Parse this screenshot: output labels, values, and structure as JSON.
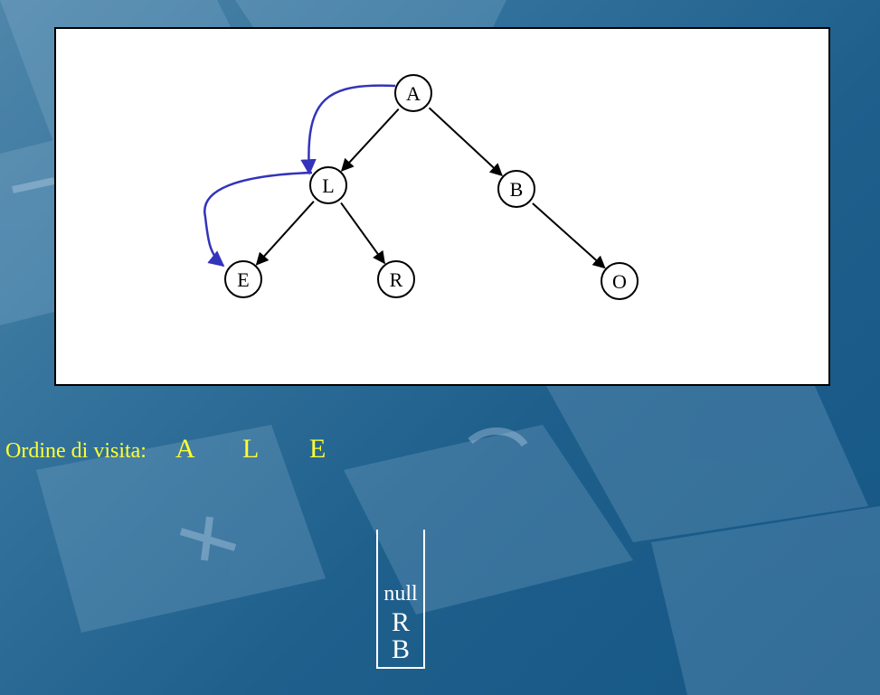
{
  "tree": {
    "nodes": [
      {
        "id": "A",
        "label": "A"
      },
      {
        "id": "L",
        "label": "L"
      },
      {
        "id": "B",
        "label": "B"
      },
      {
        "id": "E",
        "label": "E"
      },
      {
        "id": "R",
        "label": "R"
      },
      {
        "id": "O",
        "label": "O"
      }
    ],
    "edges": [
      {
        "from": "A",
        "to": "L"
      },
      {
        "from": "A",
        "to": "B"
      },
      {
        "from": "L",
        "to": "E"
      },
      {
        "from": "L",
        "to": "R"
      },
      {
        "from": "B",
        "to": "O"
      }
    ],
    "traversal_path": [
      {
        "from": "A",
        "to": "L"
      },
      {
        "from": "L",
        "to": "E"
      }
    ],
    "colors": {
      "edge": "#000000",
      "traversal": "#3333bb",
      "node_fill": "#ffffff"
    }
  },
  "visit": {
    "label": "Ordine di visita:",
    "items": [
      "A",
      "L",
      "E"
    ],
    "color": "#ffff33"
  },
  "stack": {
    "items": [
      "null",
      "R",
      "B"
    ],
    "color": "#ffffff"
  }
}
